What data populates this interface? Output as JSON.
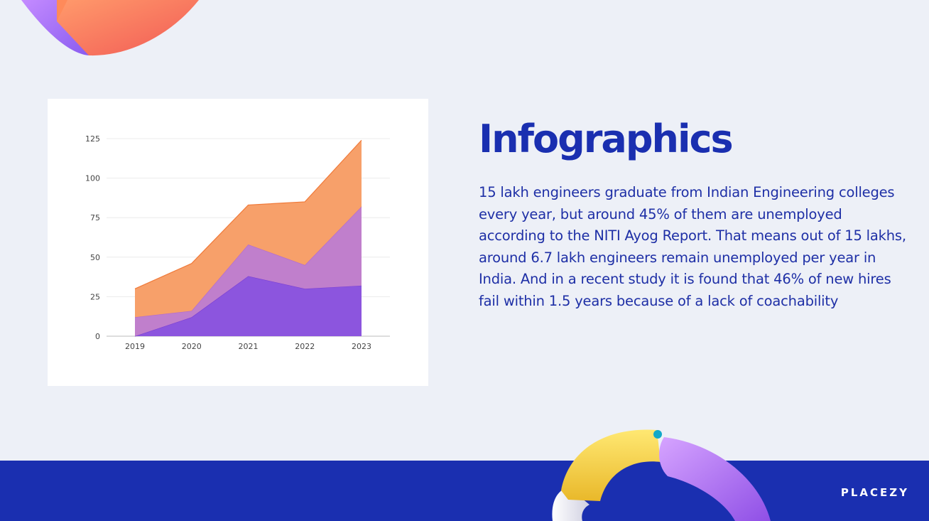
{
  "heading": "Infographics",
  "body": "15 lakh engineers graduate from Indian Engineering colleges every year, but around 45% of them are unemployed according to the NITI Ayog Report. That means out of 15 lakhs, around 6.7 lakh engineers remain unemployed per year in India. And in a recent study it is found that 46% of new hires fail within 1.5 years because of a lack of coachability",
  "brand": "PLACEZY",
  "colors": {
    "accent": "#1a2fb0",
    "background": "#edf0f7",
    "series_orange": "#f7a06a",
    "series_mauve": "#c07fcc",
    "series_purple": "#8c55de"
  },
  "chart_data": {
    "type": "area",
    "stacked": true,
    "categories": [
      "2019",
      "2020",
      "2021",
      "2022",
      "2023"
    ],
    "yticks": [
      "0",
      "25",
      "50",
      "75",
      "100",
      "125"
    ],
    "ylim": [
      0,
      125
    ],
    "grid": true,
    "legend": "none",
    "title": "",
    "xlabel": "",
    "ylabel": "",
    "series": [
      {
        "values": [
          0,
          12,
          38,
          30,
          32
        ],
        "color": "#8c55de",
        "line": "#7a3fd4"
      },
      {
        "values": [
          12,
          4,
          20,
          15,
          50
        ],
        "color": "#c07fcc",
        "line": "#b06ad0"
      },
      {
        "values": [
          18,
          30,
          25,
          40,
          42
        ],
        "color": "#f7a06a",
        "line": "#f07a3a"
      }
    ]
  }
}
